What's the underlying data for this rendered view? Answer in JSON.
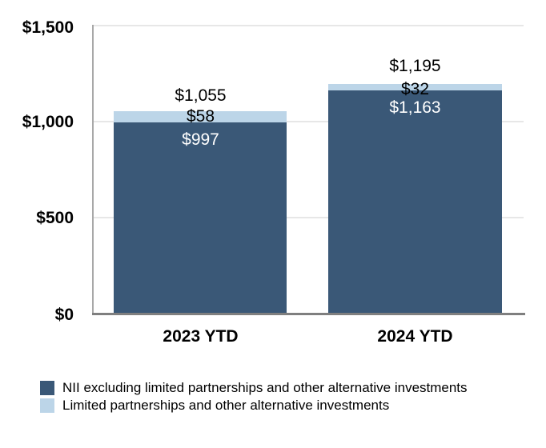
{
  "chart_data": {
    "type": "bar",
    "stacked": true,
    "grid": "horizontal",
    "legend_position": "bottom-left",
    "ylim": [
      0,
      1500
    ],
    "ytick_labels": [
      "$1,500",
      "$1,000",
      "$500",
      "$0"
    ],
    "categories": [
      "2023 YTD",
      "2024 YTD"
    ],
    "series": [
      {
        "name": "NII excluding limited partnerships and other alternative investments",
        "color": "#3a5877",
        "values": [
          997,
          1163
        ],
        "labels": [
          "$997",
          "$1,163"
        ]
      },
      {
        "name": "Limited partnerships and other alternative investments",
        "color": "#bcd5e8",
        "values": [
          58,
          32
        ],
        "labels": [
          "$58",
          "$32"
        ]
      }
    ],
    "totals": [
      1055,
      1195
    ],
    "total_labels": [
      "$1,055",
      "$1,195"
    ]
  },
  "colors": {
    "nii_dark_blue": "#3a5877",
    "lp_light_blue": "#bcd5e8",
    "gridline": "#e7e7e7",
    "y_axis_line": "#a8a8a8",
    "x_axis_line": "#7f7f7f",
    "in_bar_label_text": "#ffffff",
    "text": "#000000"
  }
}
